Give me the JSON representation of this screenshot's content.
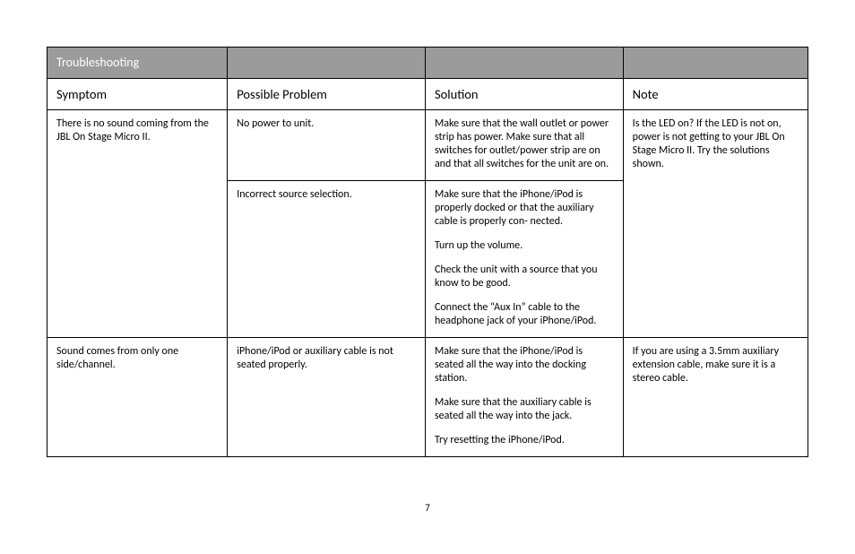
{
  "page_number": "7",
  "colors": {
    "header_bg": "#9b9b9b",
    "header_text": "#ffffff",
    "body_text": "#000000",
    "border": "#000000",
    "page_bg": "#ffffff"
  },
  "typography": {
    "header_fontsize_pt": 14,
    "subheader_fontsize_pt": 14.5,
    "body_fontsize_pt": 12,
    "font_family": "Gill Sans"
  },
  "table": {
    "section_title": "Troubleshooting",
    "columns": [
      "Symptom",
      "Possible Problem",
      "Solution",
      "Note"
    ],
    "col_widths_pct": [
      23.7,
      26,
      26,
      24.3
    ],
    "groups": [
      {
        "symptom": "There is no sound coming from the JBL On Stage Micro II.",
        "note": "Is the LED on? If the LED is not on, power is not getting to your JBL On Stage Micro II. Try the solutions shown.",
        "rows": [
          {
            "problem": "No power to unit.",
            "solution": [
              "Make sure that the wall outlet or power strip has power. Make sure that all switches for outlet/power strip are on and that all switches for the unit are on."
            ]
          },
          {
            "problem": "Incorrect source selection.",
            "solution": [
              "Make sure that the iPhone/iPod is properly docked or that the auxiliary cable is properly con-\nnected.",
              "Turn up the volume.",
              "Check the unit with a source that you know to be good.",
              "Connect the “Aux In” cable to the headphone jack of your iPhone/iPod."
            ]
          }
        ]
      },
      {
        "symptom": "Sound comes from only one side/channel.",
        "note": "If you are using a 3.5mm auxiliary extension cable, make sure it is a stereo cable.",
        "rows": [
          {
            "problem": "iPhone/iPod or auxiliary cable is not seated properly.",
            "solution": [
              "Make sure that the iPhone/iPod is seated all the way into the docking station.",
              "Make sure that the auxiliary cable is seated all the way into the jack.",
              "Try resetting the iPhone/iPod."
            ]
          }
        ]
      }
    ]
  }
}
